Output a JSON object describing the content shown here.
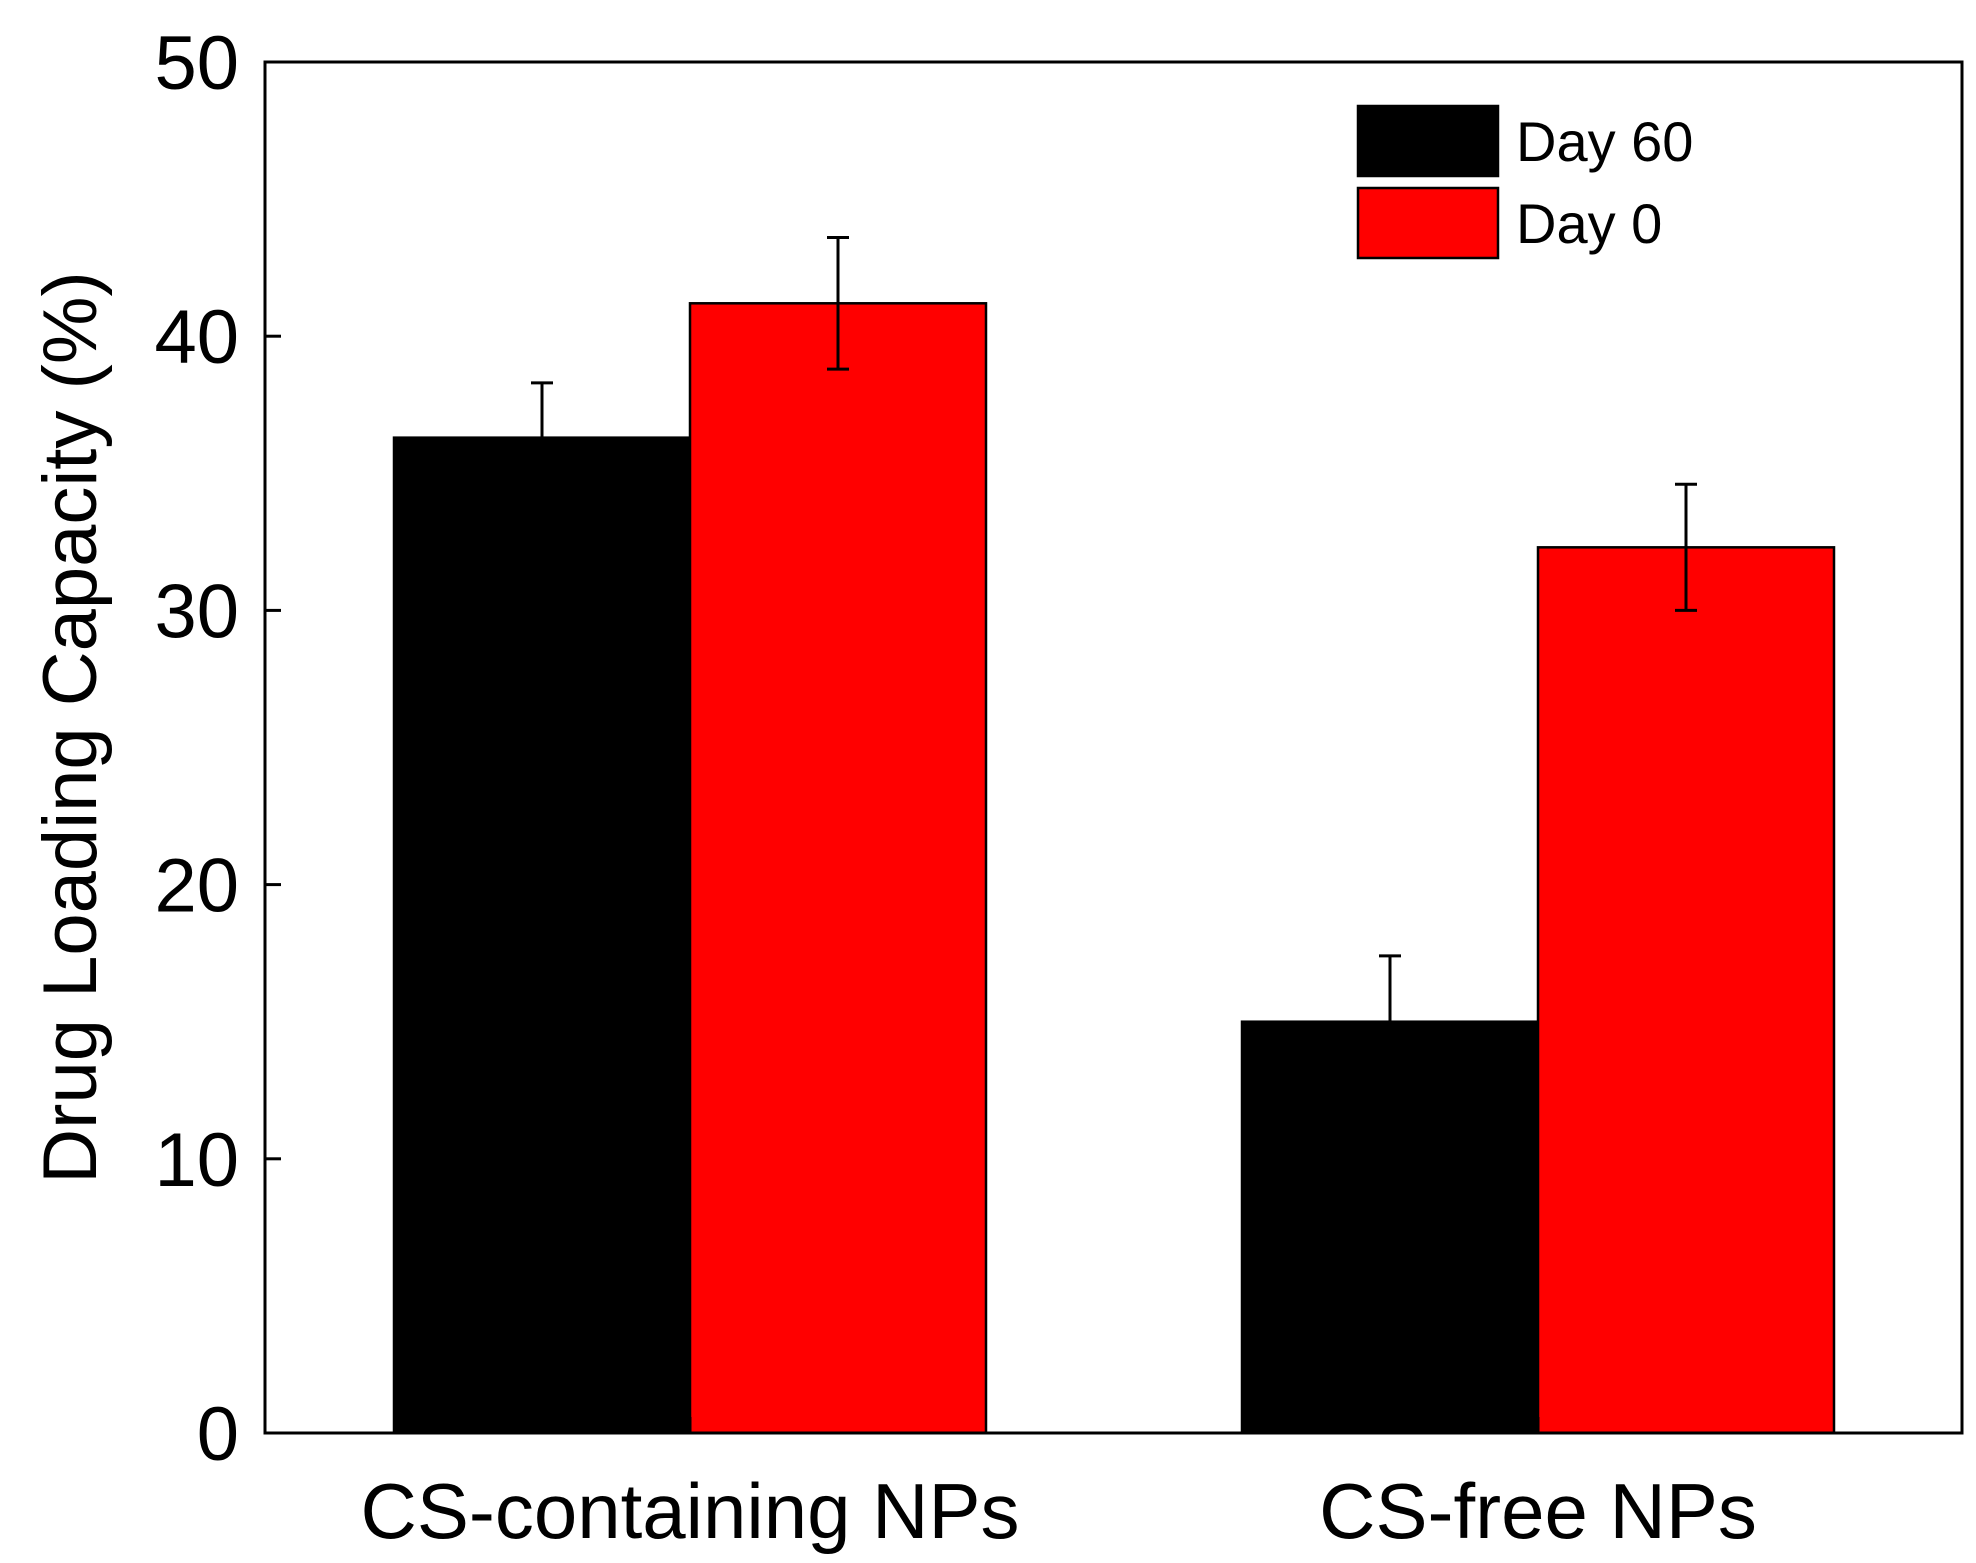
{
  "chart_data": {
    "type": "bar",
    "title": "",
    "xlabel": "",
    "ylabel": "Drug Loading Capacity (%)",
    "ylim": [
      0,
      50
    ],
    "yticks": [
      0,
      10,
      20,
      30,
      40,
      50
    ],
    "categories": [
      "CS-containing NPs",
      "CS-free NPs"
    ],
    "series": [
      {
        "name": "Day 60",
        "color": "#000000",
        "values": [
          36.3,
          15.0
        ],
        "errors": [
          2.0,
          2.4
        ]
      },
      {
        "name": "Day 0",
        "color": "#ff0000",
        "values": [
          41.2,
          32.3
        ],
        "errors": [
          2.4,
          2.3
        ]
      }
    ],
    "legend": {
      "position": "top-right",
      "entries": [
        "Day 60",
        "Day 0"
      ]
    },
    "grid": false
  }
}
